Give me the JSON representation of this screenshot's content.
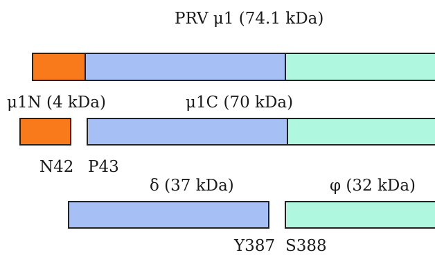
{
  "title": "PRV μ1 (74.1 kDa)",
  "labels": {
    "mu1n": "μ1N (4 kDa)",
    "mu1c": "μ1C (70 kDa)",
    "n42": "N42",
    "p43": "P43",
    "delta": "δ (37 kDa)",
    "phi": "φ (32 kDa)",
    "y387": "Y387",
    "s388": "S388"
  },
  "colors": {
    "n_region": "#f97a1a",
    "middle_region": "#a6bff5",
    "c_region": "#b0f7e0",
    "outline": "#222222"
  }
}
